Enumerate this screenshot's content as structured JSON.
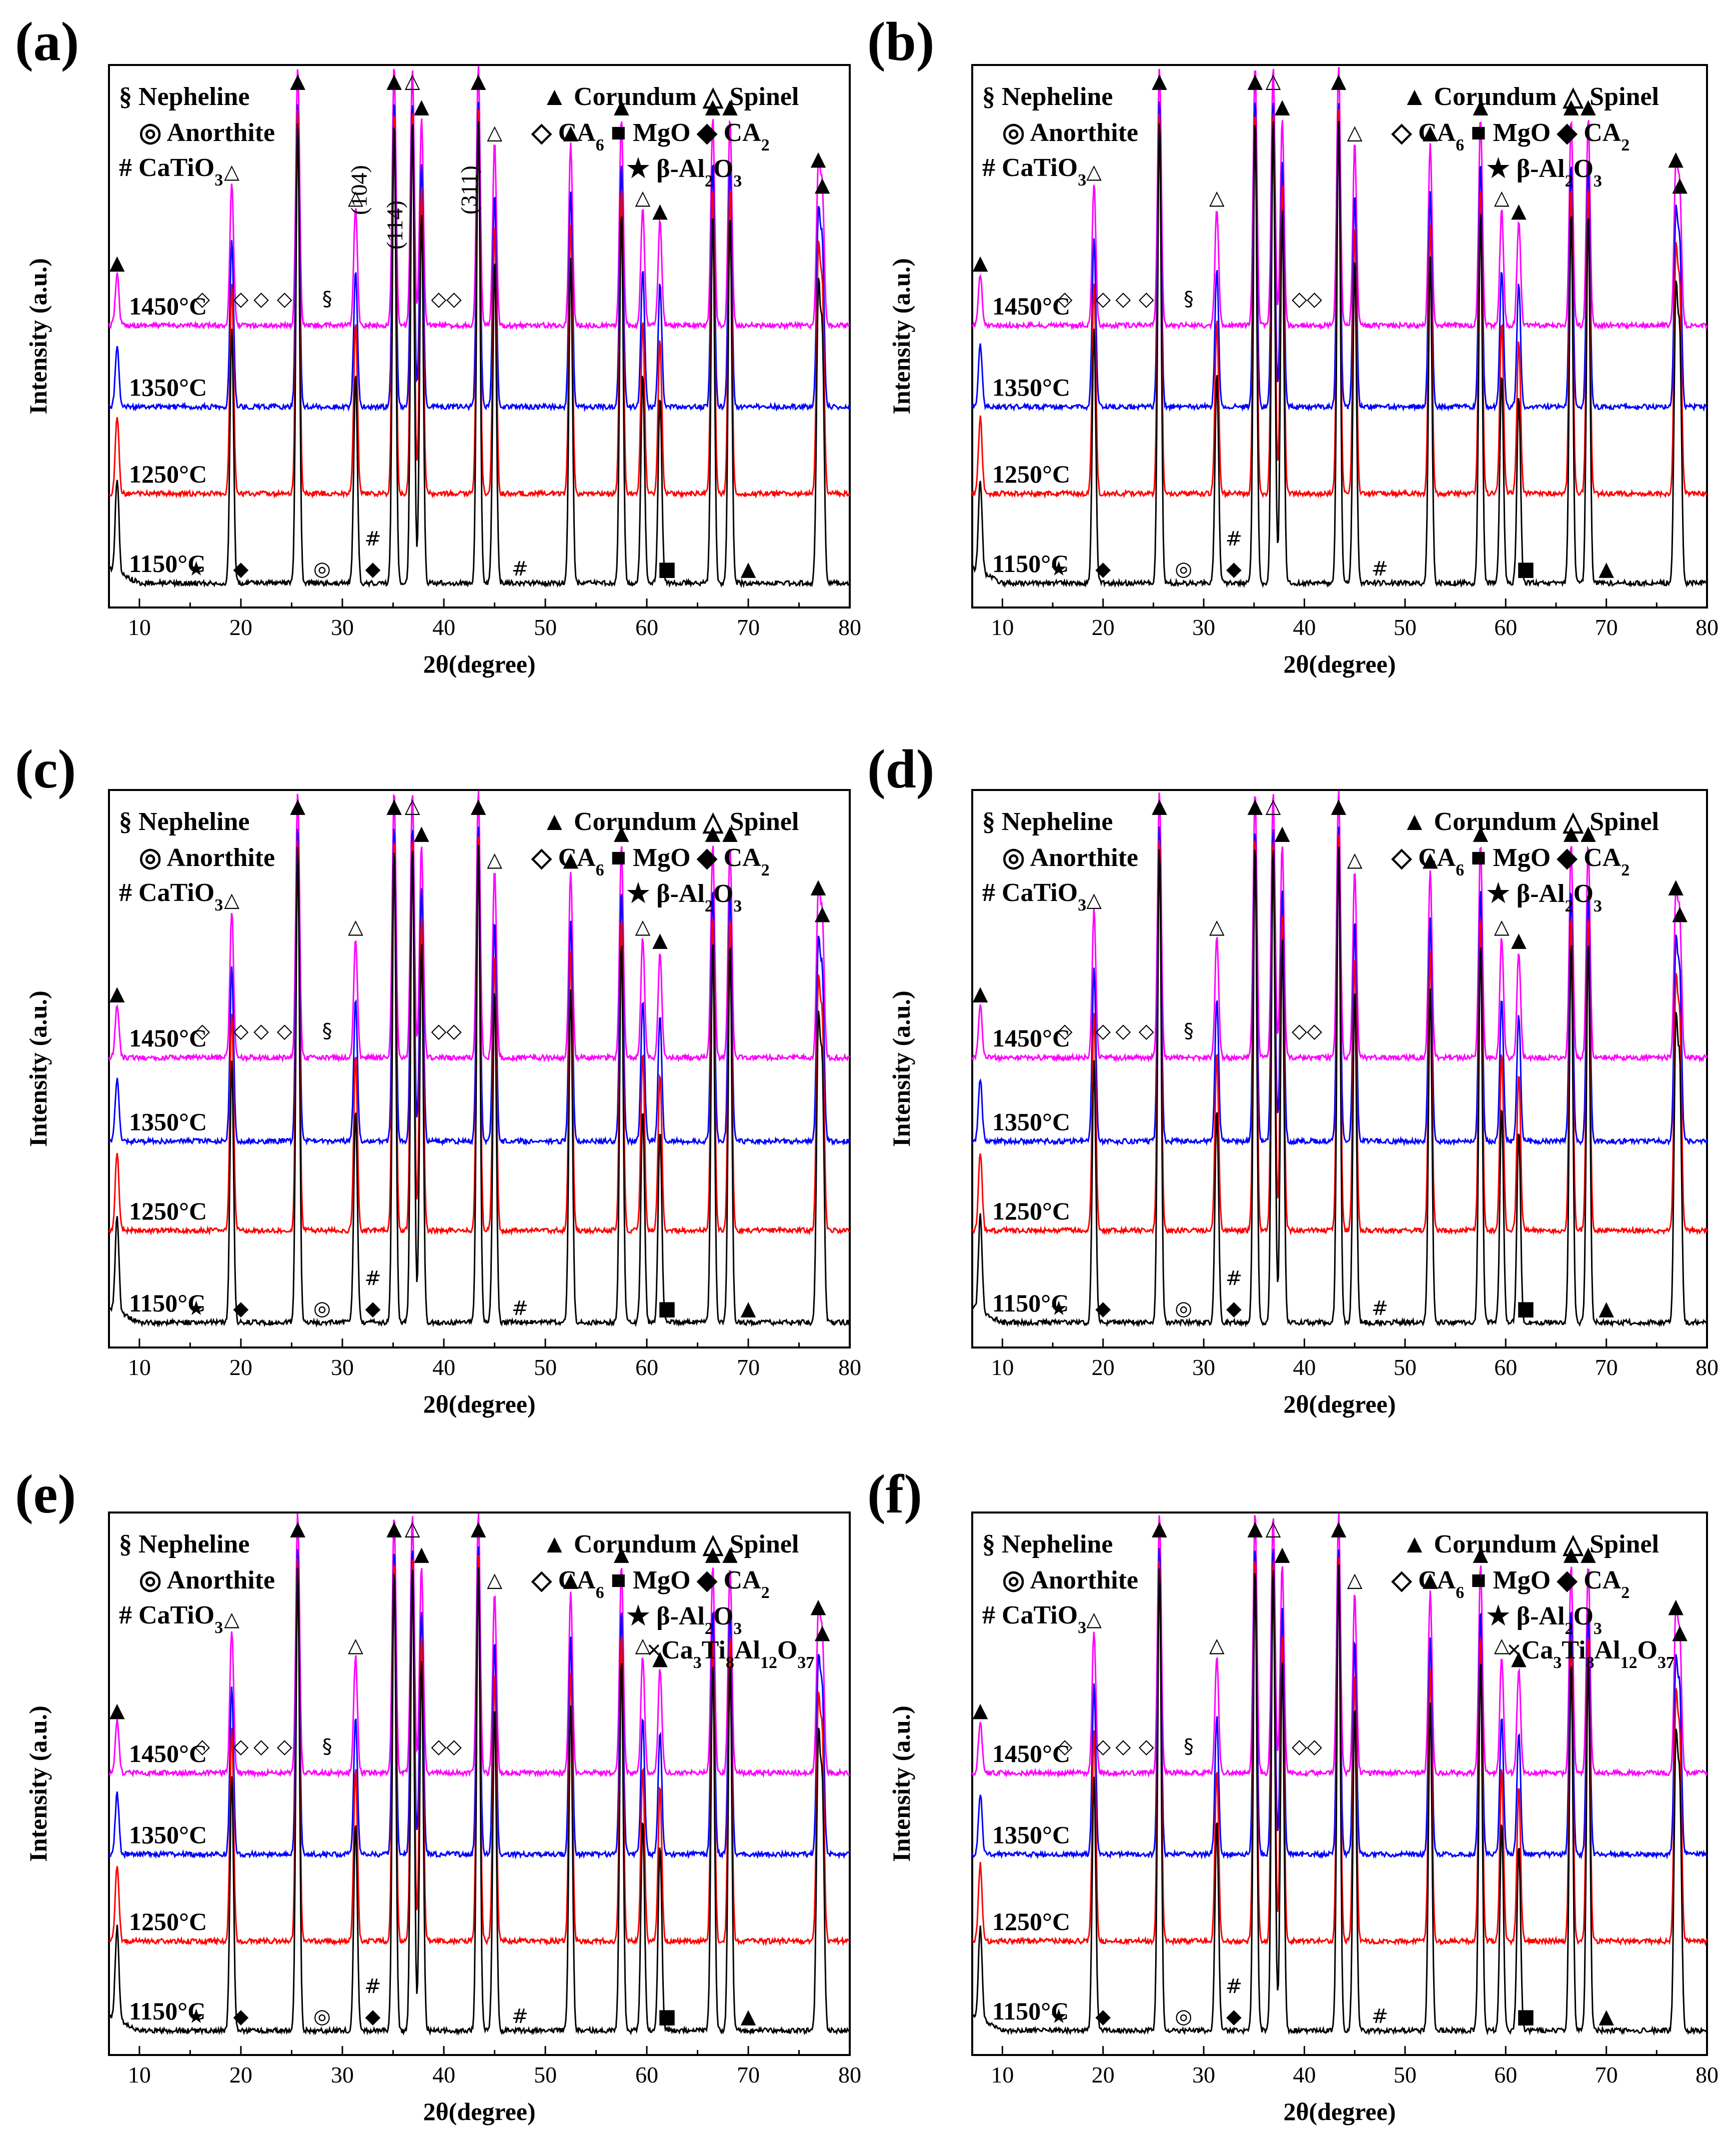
{
  "figure": {
    "legend": {
      "nepheline": "§ Nepheline",
      "anorthite": "◎ Anorthite",
      "catio3": "# CaTiO3",
      "corundum": "▲ Corundum",
      "spinel": "△ Spinel",
      "ca6_mgo_ca2": "◇ CA6 ■ MgO ◆ CA2",
      "beta_al2o3": "★ β-Al2O3",
      "ca3ti8": "×Ca3Ti8Al12O37"
    },
    "colors": {
      "1450": "#ff00ff",
      "1350": "#0000ff",
      "1250": "#ff0000",
      "1150": "#000000"
    }
  },
  "chart_data": [
    {
      "type": "line",
      "panel": "(a)",
      "title": "",
      "xlabel": "2θ(degree)",
      "ylabel": "Intensity (a.u.)",
      "xlim": [
        7,
        80
      ],
      "xticks": [
        10,
        20,
        30,
        40,
        50,
        60,
        70,
        80
      ],
      "series": [
        {
          "name": "1450°C"
        },
        {
          "name": "1350°C"
        },
        {
          "name": "1250°C"
        },
        {
          "name": "1150°C"
        }
      ],
      "peaks": [
        7.8,
        19.1,
        25.6,
        31.3,
        35.1,
        36.9,
        37.8,
        43.4,
        45.0,
        52.5,
        57.5,
        59.6,
        61.3,
        66.5,
        68.2,
        76.9,
        77.3
      ],
      "annotations": [
        "(104)",
        "(114)",
        "(311)"
      ]
    },
    {
      "type": "line",
      "panel": "(b)",
      "title": "",
      "xlabel": "2θ(degree)",
      "ylabel": "Intensity (a.u.)",
      "xlim": [
        7,
        80
      ],
      "xticks": [
        10,
        20,
        30,
        40,
        50,
        60,
        70,
        80
      ],
      "series": [
        {
          "name": "1450°C"
        },
        {
          "name": "1350°C"
        },
        {
          "name": "1250°C"
        },
        {
          "name": "1150°C"
        }
      ],
      "peaks": [
        7.8,
        19.1,
        25.6,
        31.3,
        35.1,
        36.9,
        37.8,
        43.4,
        45.0,
        52.5,
        57.5,
        59.6,
        61.3,
        66.5,
        68.2,
        76.9,
        77.3
      ],
      "annotations": []
    },
    {
      "type": "line",
      "panel": "(c)",
      "title": "",
      "xlabel": "2θ(degree)",
      "ylabel": "Intensity (a.u.)",
      "xlim": [
        7,
        80
      ],
      "xticks": [
        10,
        20,
        30,
        40,
        50,
        60,
        70,
        80
      ],
      "series": [
        {
          "name": "1450°C"
        },
        {
          "name": "1350°C"
        },
        {
          "name": "1250°C"
        },
        {
          "name": "1150°C"
        }
      ],
      "peaks": [
        7.8,
        19.1,
        25.6,
        31.3,
        35.1,
        36.9,
        37.8,
        43.4,
        45.0,
        52.5,
        57.5,
        59.6,
        61.3,
        66.5,
        68.2,
        76.9,
        77.3
      ],
      "annotations": []
    },
    {
      "type": "line",
      "panel": "(d)",
      "title": "",
      "xlabel": "2θ(degree)",
      "ylabel": "Intensity (a.u.)",
      "xlim": [
        7,
        80
      ],
      "xticks": [
        10,
        20,
        30,
        40,
        50,
        60,
        70,
        80
      ],
      "series": [
        {
          "name": "1450°C"
        },
        {
          "name": "1350°C"
        },
        {
          "name": "1250°C"
        },
        {
          "name": "1150°C"
        }
      ],
      "peaks": [
        7.8,
        19.1,
        25.6,
        31.3,
        35.1,
        36.9,
        37.8,
        43.4,
        45.0,
        52.5,
        57.5,
        59.6,
        61.3,
        66.5,
        68.2,
        76.9,
        77.3
      ],
      "annotations": []
    },
    {
      "type": "line",
      "panel": "(e)",
      "title": "",
      "xlabel": "2θ(degree)",
      "ylabel": "Intensity (a.u.)",
      "xlim": [
        7,
        80
      ],
      "xticks": [
        10,
        20,
        30,
        40,
        50,
        60,
        70,
        80
      ],
      "series": [
        {
          "name": "1450°C"
        },
        {
          "name": "1350°C"
        },
        {
          "name": "1250°C"
        },
        {
          "name": "1150°C"
        }
      ],
      "peaks": [
        7.8,
        19.1,
        25.6,
        31.3,
        35.1,
        36.9,
        37.8,
        43.4,
        45.0,
        52.5,
        57.5,
        59.6,
        61.3,
        66.5,
        68.2,
        76.9,
        77.3
      ],
      "annotations": []
    },
    {
      "type": "line",
      "panel": "(f)",
      "title": "",
      "xlabel": "2θ(degree)",
      "ylabel": "Intensity (a.u.)",
      "xlim": [
        7,
        80
      ],
      "xticks": [
        10,
        20,
        30,
        40,
        50,
        60,
        70,
        80
      ],
      "series": [
        {
          "name": "1450°C"
        },
        {
          "name": "1350°C"
        },
        {
          "name": "1250°C"
        },
        {
          "name": "1150°C"
        }
      ],
      "peaks": [
        7.8,
        19.1,
        25.6,
        31.3,
        35.1,
        36.9,
        37.8,
        43.4,
        45.0,
        52.5,
        57.5,
        59.6,
        61.3,
        66.5,
        68.2,
        76.9,
        77.3
      ],
      "annotations": []
    }
  ],
  "markers": {
    "star": "★",
    "diamond_filled": "◆",
    "diamond_open": "◇",
    "triangle_filled": "▲",
    "triangle_open": "△",
    "section": "§",
    "anorthite": "◎",
    "hash": "#",
    "square": "■",
    "cross": "×"
  }
}
